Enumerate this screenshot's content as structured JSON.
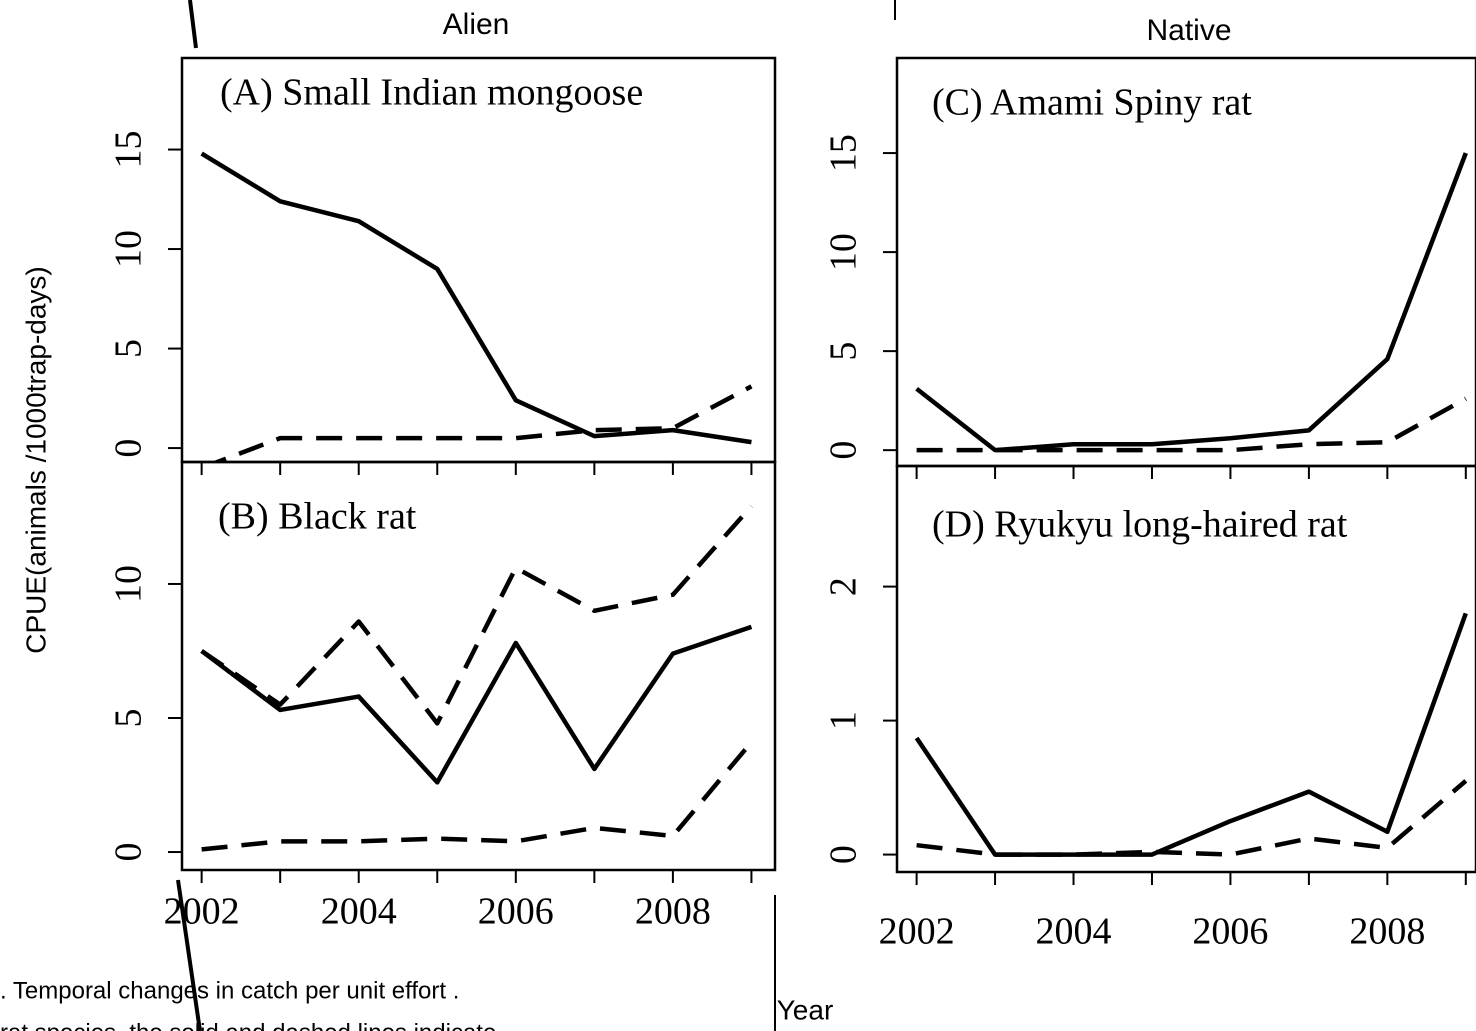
{
  "header": {
    "left": "Alien",
    "right": "Native"
  },
  "y_label": "CPUE(animals /1000trap-days)",
  "x_label": "Year",
  "caption": [
    ". Temporal changes in catch per unit effort .",
    "rat species, the solid and dashed lines indicate"
  ],
  "chart_data": [
    {
      "type": "line",
      "title": "(A) Small Indian mongoose",
      "x": [
        2002,
        2003,
        2004,
        2005,
        2006,
        2007,
        2008,
        2009
      ],
      "series": [
        {
          "color": "#000000",
          "dash": "solid",
          "values": [
            14.8,
            12.4,
            11.4,
            9.0,
            2.4,
            0.6,
            0.9,
            0.3
          ]
        },
        {
          "color": "#000000",
          "dash": "dashed",
          "values": [
            -1.0,
            0.5,
            0.5,
            0.5,
            0.5,
            0.9,
            1.0,
            3.1
          ]
        }
      ],
      "xlim": [
        2001.75,
        2009.3
      ],
      "ylim": [
        -0.7,
        19.6
      ],
      "yticks": [
        0,
        5,
        10,
        15
      ],
      "xtick_marks": [
        2002,
        2003,
        2004,
        2005,
        2006,
        2007,
        2008,
        2009
      ]
    },
    {
      "type": "line",
      "title": "(B) Black rat",
      "x": [
        2002,
        2003,
        2004,
        2005,
        2006,
        2007,
        2008,
        2009
      ],
      "series": [
        {
          "color": "#000000",
          "dash": "solid",
          "values": [
            7.5,
            5.3,
            5.8,
            2.6,
            7.8,
            3.1,
            7.4,
            8.4
          ]
        },
        {
          "color": "#000000",
          "dash": "dashed",
          "values": [
            7.5,
            5.5,
            8.6,
            4.8,
            10.6,
            9.0,
            9.6,
            12.9
          ]
        },
        {
          "color": "#000000",
          "dash": "dashed",
          "values": [
            0.1,
            0.4,
            0.4,
            0.5,
            0.4,
            0.9,
            0.6,
            4.1
          ]
        }
      ],
      "xlim": [
        2001.75,
        2009.3
      ],
      "ylim": [
        -0.67,
        14.55
      ],
      "yticks": [
        0,
        5,
        10
      ],
      "xticks": [
        2002,
        2004,
        2006,
        2008
      ],
      "xtick_marks": [
        2002,
        2003,
        2004,
        2005,
        2006,
        2007,
        2008,
        2009
      ]
    },
    {
      "type": "line",
      "title": "(C) Amami Spiny rat",
      "x": [
        2002,
        2003,
        2004,
        2005,
        2006,
        2007,
        2008,
        2009
      ],
      "series": [
        {
          "color": "#000000",
          "dash": "solid",
          "values": [
            3.1,
            0,
            0.3,
            0.3,
            0.6,
            1.0,
            4.6,
            15.0
          ]
        },
        {
          "color": "#000000",
          "dash": "dashed",
          "values": [
            0,
            0,
            0,
            0,
            0,
            0.3,
            0.4,
            2.6
          ]
        }
      ],
      "xlim": [
        2001.75,
        2009.13
      ],
      "ylim": [
        -0.8,
        19.8
      ],
      "yticks": [
        0,
        5,
        10,
        15
      ],
      "xtick_marks": [
        2002,
        2003,
        2004,
        2005,
        2006,
        2007,
        2008,
        2009
      ]
    },
    {
      "type": "line",
      "title": "(D) Ryukyu long-haired rat",
      "x": [
        2002,
        2003,
        2004,
        2005,
        2006,
        2007,
        2008,
        2009
      ],
      "series": [
        {
          "color": "#000000",
          "dash": "solid",
          "values": [
            0.87,
            0,
            0,
            0,
            0.25,
            0.47,
            0.17,
            1.8
          ]
        },
        {
          "color": "#000000",
          "dash": "dashed",
          "values": [
            0.07,
            0,
            0,
            0.02,
            0,
            0.12,
            0.05,
            0.55
          ]
        }
      ],
      "xlim": [
        2001.75,
        2009.13
      ],
      "ylim": [
        -0.13,
        2.9
      ],
      "yticks": [
        0,
        1,
        2
      ],
      "xticks": [
        2002,
        2004,
        2006,
        2008
      ],
      "xtick_marks": [
        2002,
        2003,
        2004,
        2005,
        2006,
        2007,
        2008,
        2009
      ]
    }
  ]
}
